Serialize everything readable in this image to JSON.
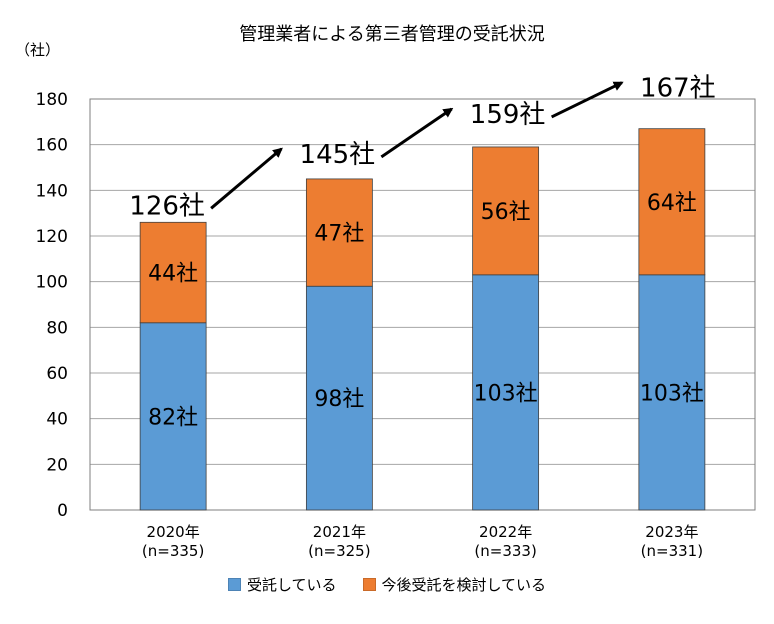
{
  "chart_data": {
    "type": "bar",
    "stacked": true,
    "title": "管理業者による第三者管理の受託状況",
    "ylabel": "（社）",
    "ylim": [
      0,
      180
    ],
    "yticks": [
      0,
      20,
      40,
      60,
      80,
      100,
      120,
      140,
      160,
      180
    ],
    "grid": true,
    "legend_position": "bottom",
    "categories": [
      [
        "2020年",
        "(n=335)"
      ],
      [
        "2021年",
        "(n=325)"
      ],
      [
        "2022年",
        "(n=333)"
      ],
      [
        "2023年",
        "(n=331)"
      ]
    ],
    "series": [
      {
        "name": "受託している",
        "color": "#5b9bd5",
        "values": [
          82,
          98,
          103,
          103
        ],
        "labels": [
          "82社",
          "98社",
          "103社",
          "103社"
        ]
      },
      {
        "name": "今後受託を検討している",
        "color": "#ed7d31",
        "values": [
          44,
          47,
          56,
          64
        ],
        "labels": [
          "44社",
          "47社",
          "56社",
          "64社"
        ]
      }
    ],
    "totals": [
      126,
      145,
      159,
      167
    ],
    "total_labels": [
      "126社",
      "145社",
      "159社",
      "167社"
    ]
  }
}
